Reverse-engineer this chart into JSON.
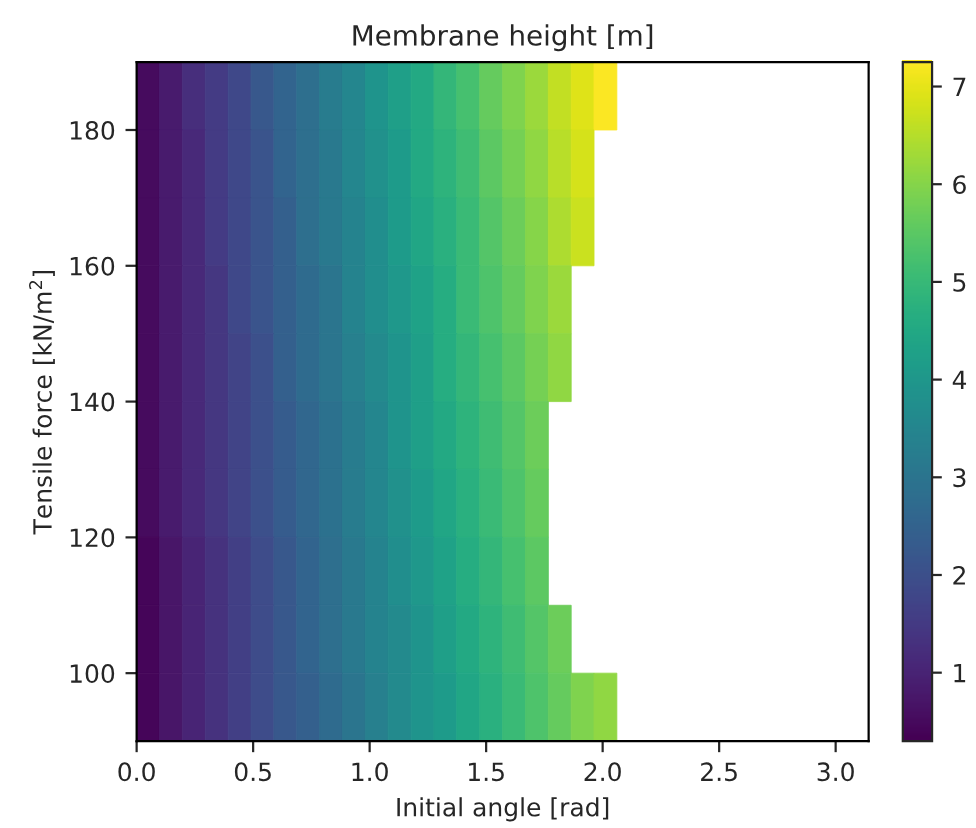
{
  "chart_data": {
    "type": "heatmap",
    "title": "Membrane height [m]",
    "xlabel": "Initial angle [rad]",
    "ylabel": "Tensile force [kN/m$^{2}$]",
    "x": [
      0.049,
      0.147,
      0.245,
      0.344,
      0.442,
      0.54,
      0.638,
      0.736,
      0.834,
      0.933,
      1.031,
      1.129,
      1.227,
      1.325,
      1.423,
      1.522,
      1.62,
      1.718,
      1.816,
      1.914,
      2.012,
      2.11,
      2.209,
      2.307,
      2.405,
      2.503,
      2.601,
      2.699,
      2.798,
      2.896,
      2.994,
      3.092
    ],
    "y": [
      185,
      175,
      165,
      155,
      145,
      135,
      125,
      115,
      105,
      95
    ],
    "xlim": [
      0,
      3.14159
    ],
    "xticks": [
      {
        "value": 0,
        "label": "0.0"
      },
      0.5,
      {
        "value": 1,
        "label": "1.0"
      },
      1.5,
      {
        "value": 2,
        "label": "2.0"
      },
      2.5,
      {
        "value": 3,
        "label": "3.0"
      }
    ],
    "ylim": [
      90,
      190
    ],
    "yticks": [
      100,
      120,
      140,
      160,
      180
    ],
    "clim": [
      0.3,
      7.25
    ],
    "cticks": [
      1,
      2,
      3,
      4,
      5,
      6,
      7
    ],
    "cells": [
      [
        0.5,
        0.8,
        1.2,
        1.5,
        1.8,
        2.2,
        2.5,
        2.8,
        3.2,
        3.5,
        3.9,
        4.2,
        4.5,
        4.9,
        5.2,
        5.6,
        5.9,
        6.2,
        6.6,
        6.9,
        7.2,
        null,
        null,
        null,
        null,
        null,
        null,
        null,
        null,
        null,
        null,
        null
      ],
      [
        0.5,
        0.8,
        1.1,
        1.5,
        1.8,
        2.1,
        2.5,
        2.8,
        3.1,
        3.5,
        3.8,
        4.1,
        4.5,
        4.8,
        5.1,
        5.5,
        5.8,
        6.1,
        6.5,
        6.8,
        null,
        null,
        null,
        null,
        null,
        null,
        null,
        null,
        null,
        null,
        null,
        null
      ],
      [
        0.5,
        0.8,
        1.1,
        1.5,
        1.8,
        2.1,
        2.4,
        2.8,
        3.1,
        3.4,
        3.7,
        4.1,
        4.4,
        4.7,
        5.0,
        5.4,
        5.7,
        6.0,
        6.4,
        6.7,
        null,
        null,
        null,
        null,
        null,
        null,
        null,
        null,
        null,
        null,
        null,
        null
      ],
      [
        0.5,
        0.8,
        1.1,
        1.4,
        1.8,
        2.1,
        2.4,
        2.7,
        3.0,
        3.4,
        3.7,
        4.0,
        4.3,
        4.6,
        5.0,
        5.3,
        5.6,
        5.9,
        6.2,
        null,
        null,
        null,
        null,
        null,
        null,
        null,
        null,
        null,
        null,
        null,
        null,
        null
      ],
      [
        0.5,
        0.8,
        1.1,
        1.4,
        1.7,
        2.0,
        2.4,
        2.7,
        3.0,
        3.3,
        3.6,
        3.9,
        4.2,
        4.6,
        4.9,
        5.2,
        5.5,
        5.8,
        6.1,
        null,
        null,
        null,
        null,
        null,
        null,
        null,
        null,
        null,
        null,
        null,
        null,
        null
      ],
      [
        0.5,
        0.8,
        1.1,
        1.4,
        1.7,
        2.0,
        2.3,
        2.6,
        2.9,
        3.2,
        3.5,
        3.9,
        4.2,
        4.5,
        4.8,
        5.1,
        5.4,
        5.7,
        null,
        null,
        null,
        null,
        null,
        null,
        null,
        null,
        null,
        null,
        null,
        null,
        null,
        null
      ],
      [
        0.5,
        0.8,
        1.1,
        1.4,
        1.7,
        2.0,
        2.3,
        2.6,
        2.9,
        3.2,
        3.5,
        3.8,
        4.1,
        4.4,
        4.7,
        5.0,
        5.3,
        5.6,
        null,
        null,
        null,
        null,
        null,
        null,
        null,
        null,
        null,
        null,
        null,
        null,
        null,
        null
      ],
      [
        0.4,
        0.7,
        1.0,
        1.3,
        1.6,
        1.9,
        2.2,
        2.5,
        2.8,
        3.1,
        3.4,
        3.7,
        4.0,
        4.3,
        4.6,
        4.9,
        5.2,
        5.5,
        null,
        null,
        null,
        null,
        null,
        null,
        null,
        null,
        null,
        null,
        null,
        null,
        null,
        null
      ],
      [
        0.4,
        0.7,
        1.0,
        1.3,
        1.6,
        1.9,
        2.2,
        2.5,
        2.8,
        3.1,
        3.4,
        3.6,
        3.9,
        4.2,
        4.5,
        4.8,
        5.1,
        5.4,
        5.7,
        null,
        null,
        null,
        null,
        null,
        null,
        null,
        null,
        null,
        null,
        null,
        null,
        null
      ],
      [
        0.4,
        0.7,
        1.0,
        1.3,
        1.6,
        1.9,
        2.2,
        2.4,
        2.7,
        3.0,
        3.3,
        3.6,
        3.9,
        4.1,
        4.4,
        4.7,
        5.0,
        5.3,
        5.6,
        5.9,
        6.1,
        null,
        null,
        null,
        null,
        null,
        null,
        null,
        null,
        null,
        null,
        null
      ]
    ]
  }
}
